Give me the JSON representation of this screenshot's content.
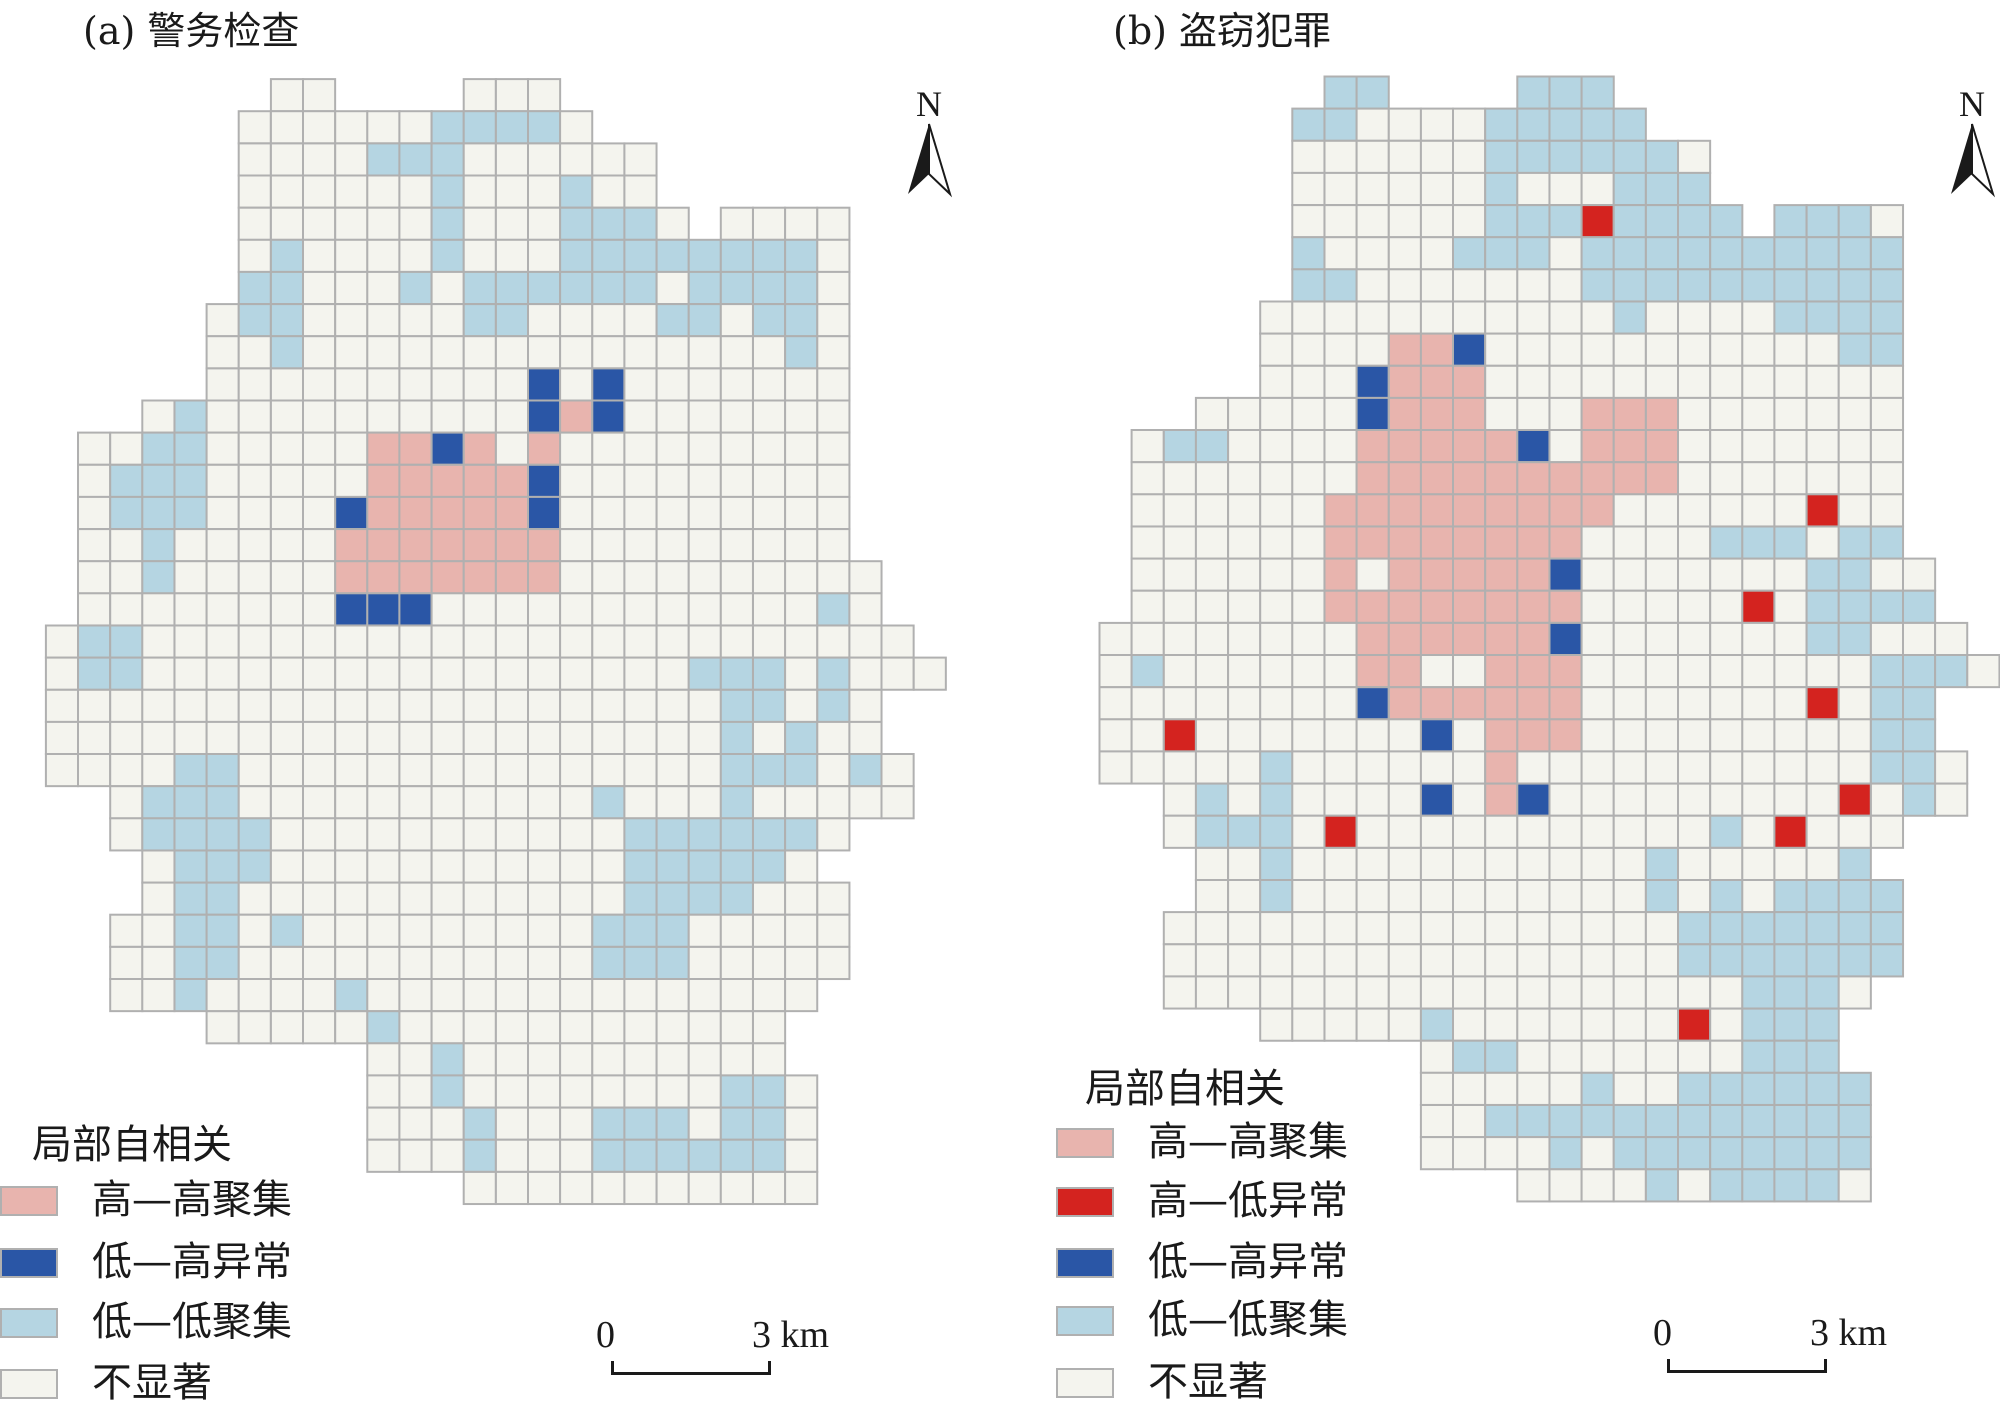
{
  "colors": {
    "h": "#e8b4ae",
    "a": "#d4231f",
    "b": "#2a56a6",
    "l": "#b5d5e2",
    "n": "#f4f4ee",
    "border": "#b0b0b0"
  },
  "grid_legend": {
    ".": "no-cell",
    "n": "not-significant",
    "h": "high-high",
    "a": "high-low",
    "b": "low-high",
    "l": "low-low"
  },
  "maps": [
    {
      "title": "(a) 警务检查",
      "north_label": "N",
      "legend_title": "局部自相关",
      "legend": [
        {
          "key": "h",
          "label": "高—高聚集"
        },
        {
          "key": "b",
          "label": "低—高异常"
        },
        {
          "key": "l",
          "label": "低—低聚集"
        },
        {
          "key": "n",
          "label": "不显著"
        }
      ],
      "scale": {
        "start": "0",
        "end": "3 km"
      },
      "grid_rle": [
        "7.2n4.3n12.",
        "6.6n4l1n11.",
        "6.4n3l6n9.",
        "6.6nl3nl2n9.",
        "6.6nl3n3ln.4n3.",
        "6.nl4nl3n8ln3.",
        "6.2l3nln6ln4ln3.",
        "5.n2l5n2l4n2ln2ln3.",
        "5.2nl15nln3.",
        "5.10nbnb7n3.",
        "3.nl10nbhb7n3.",
        ".2n2l5n2hbhnh9n3.",
        ".n3l5n5hb9n3.",
        ".n3l4nb5hb9n3.",
        ".2nl5n7h9n3.",
        ".2nl5n7h10n2.",
        ".8n3b12nln2.",
        "n2l24n.",
        "n2l17n3lnl3n",
        "21n2lnln2.",
        "21nlnl2n2.",
        "4n2l15n3lnln.",
        "2.n3l11nl3nl5n.",
        "2.n4l11n6ln3.",
        "3.n3l11n5ln4.",
        "3.n2l12n4l3n3.",
        "2.2n2lnl9n3l5n3.",
        "2.2n2l11n3l5n3.",
        "2.2nl4nl14n4.",
        "5.5nl12n5.",
        "10.2nl10n5.",
        "10.2nl8n2ln4.",
        "10.3nl3n3ln2ln4.",
        "10.3nl3n6ln4.",
        "13.11n4."
      ]
    },
    {
      "title": "(b) 盗窃犯罪",
      "north_label": "N",
      "legend_title": "局部自相关",
      "legend": [
        {
          "key": "h",
          "label": "高—高聚集"
        },
        {
          "key": "a",
          "label": "高—低异常"
        },
        {
          "key": "b",
          "label": "低—高异常"
        },
        {
          "key": "l",
          "label": "低—低聚集"
        },
        {
          "key": "n",
          "label": "不显著"
        }
      ],
      "scale": {
        "start": "0",
        "end": "3 km"
      },
      "grid_rle": [
        "7.2l4.3l12.",
        "6.2l4n5l11.",
        "6.6n6ln9.",
        "6.6nl3n3l9.",
        "6.6n3la4l.3ln3.",
        "6.l4n3ln10l3.",
        "6.2l7n10l3.",
        "5.11nl4n4l3.",
        "5.4n2hb11n2l3.",
        "5.3nb3h13n3.",
        "3.5nb3h3n3h7n3.",
        ".n2l4n5hbn3h7n3.",
        ".7n10h7n3.",
        ".6n9h6na2n3.",
        ".6n8h4n3ln2l3.",
        ".6nhn5hb7n2l2n2.",
        ".6n8h5nan4l2.",
        "8n6hb7n2l3n.",
        "nl6n2h2n3h9n3ln",
        "8nb6h7nan2l2.",
        "2na7nbn3h9n2l2.",
        "5nl6nh11n2ln.",
        "2.nlnl4nbnhb9nanln.",
        "2.n3lna11nlna3n3.",
        "3.2nl11nl5nl4.",
        "3.2nl11nlnln4l3.",
        "2.16n7l3.",
        "2.16n7l3.",
        "2.18n3ln4.",
        "5.5nl7nan3l5.",
        "10.n2l7n3l5.",
        "10.5nl2n6l4.",
        "10.2n12l4.",
        "10.4nln8l4.",
        "13.4nln4ln4."
      ]
    }
  ]
}
